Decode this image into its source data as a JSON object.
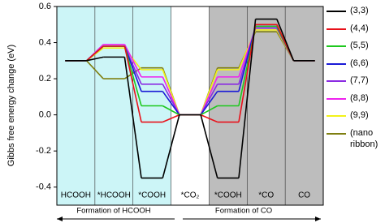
{
  "chart_data": {
    "type": "energy-diagram",
    "y_label": "Gibbs free energy change (eV)",
    "categories": [
      "HCOOH",
      "*HCOOH",
      "*COOH",
      "*CO₂",
      "*COOH",
      "*CO",
      "CO"
    ],
    "ylim": [
      -0.5,
      0.6
    ],
    "yticks": [
      -0.4,
      -0.2,
      {
        "value": 0,
        "label": "0.0"
      },
      0.2,
      0.4,
      0.6
    ],
    "annotations": [
      "Formation of HCOOH",
      "Formation of CO"
    ],
    "series": [
      {
        "name": "(3,3)",
        "color": "#000000",
        "values": [
          0.3,
          0.32,
          -0.35,
          0,
          -0.35,
          0.53,
          0.3
        ]
      },
      {
        "name": "(4,4)",
        "color": "#e8111a",
        "values": [
          0.3,
          0.38,
          -0.04,
          0,
          -0.04,
          0.5,
          0.3
        ]
      },
      {
        "name": "(5,5)",
        "color": "#1ec81e",
        "values": [
          0.3,
          0.38,
          0.05,
          0,
          0.05,
          0.49,
          0.3
        ]
      },
      {
        "name": "(6,6)",
        "color": "#1a1ad6",
        "values": [
          0.3,
          0.38,
          0.13,
          0,
          0.13,
          0.49,
          0.3
        ]
      },
      {
        "name": "(7,7)",
        "color": "#8a2be2",
        "values": [
          0.3,
          0.38,
          0.17,
          0,
          0.17,
          0.48,
          0.3
        ]
      },
      {
        "name": "(8,8)",
        "color": "#ee22ee",
        "values": [
          0.3,
          0.39,
          0.21,
          0,
          0.21,
          0.48,
          0.3
        ]
      },
      {
        "name": "(9,9)",
        "color": "#f2f21a",
        "values": [
          0.3,
          0.37,
          0.25,
          0,
          0.25,
          0.47,
          0.3
        ]
      },
      {
        "name": "(nano ribbon)",
        "color": "#7f7f10",
        "values": [
          0.3,
          0.2,
          0.26,
          0,
          0.26,
          0.46,
          0.3
        ]
      }
    ]
  }
}
